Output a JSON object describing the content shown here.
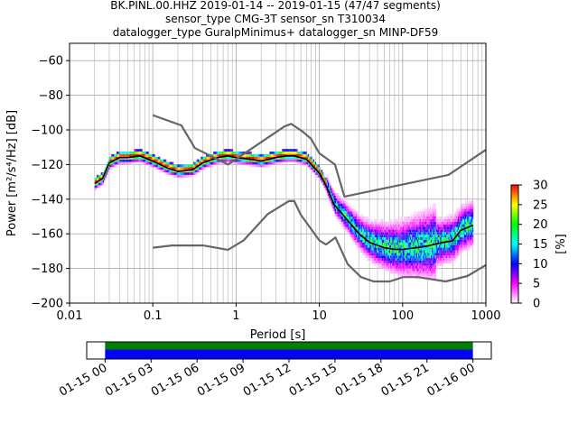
{
  "title_lines": [
    "BK.PINL.00.HHZ   2019-01-14 -- 2019-01-15  (47/47 segments)",
    "sensor_type CMG-3T sensor_sn T310034",
    "datalogger_type GuralpMinimus+ datalogger_sn MINP-DF59"
  ],
  "chart_data": [
    {
      "type": "heatmap",
      "subtype": "probabilistic-power-spectral-density",
      "xlabel": "Period [s]",
      "ylabel": "Power [m²/s⁴/Hz] [dB]",
      "xscale": "log",
      "xlim": [
        0.01,
        1000
      ],
      "ylim": [
        -200,
        -50
      ],
      "x_ticks": [
        0.01,
        0.1,
        1,
        10,
        100,
        1000
      ],
      "x_tick_labels": [
        "0.01",
        "0.1",
        "1",
        "10",
        "100",
        "1000"
      ],
      "y_ticks": [
        -200,
        -180,
        -160,
        -140,
        -120,
        -100,
        -80,
        -60
      ],
      "y_tick_labels": [
        "−200",
        "−180",
        "−160",
        "−140",
        "−120",
        "−100",
        "−80",
        "−60"
      ],
      "grid": true,
      "colorbar": {
        "label": "[%]",
        "range": [
          0,
          30
        ],
        "ticks": [
          0,
          5,
          10,
          15,
          20,
          25,
          30
        ],
        "tick_labels": [
          "0",
          "5",
          "10",
          "15",
          "20",
          "25",
          "30"
        ],
        "colors": [
          "#ffffff",
          "#ff00ff",
          "#0000ff",
          "#00ffff",
          "#00ff00",
          "#ffff00",
          "#ff0000"
        ]
      },
      "series": [
        {
          "role": "mode",
          "color": "#000000",
          "x": [
            0.02,
            0.025,
            0.03,
            0.04,
            0.05,
            0.07,
            0.1,
            0.15,
            0.2,
            0.3,
            0.4,
            0.6,
            0.8,
            1,
            1.5,
            2,
            3,
            4,
            5,
            7,
            10,
            12,
            15,
            20,
            30,
            40,
            60,
            80,
            100,
            150,
            200,
            300,
            400,
            500,
            700
          ],
          "y": [
            -131,
            -128,
            -119,
            -116,
            -116,
            -115,
            -118,
            -122,
            -124,
            -123,
            -119,
            -116,
            -115,
            -116,
            -117,
            -118,
            -116,
            -115,
            -115,
            -117,
            -125,
            -132,
            -143,
            -150,
            -160,
            -165,
            -168,
            -169,
            -169,
            -168,
            -167,
            -165,
            -164,
            -158,
            -155
          ]
        },
        {
          "role": "noise-model-high",
          "color": "#666666",
          "x": [
            0.1,
            0.22,
            0.32,
            0.8,
            3.8,
            4.6,
            6.3,
            7.9,
            10,
            15.4,
            20,
            354.8,
            1000
          ],
          "y": [
            -91.5,
            -97.4,
            -110.5,
            -120,
            -98,
            -96.5,
            -101,
            -105,
            -113.5,
            -120,
            -138.5,
            -126,
            -111.5
          ]
        },
        {
          "role": "noise-model-low",
          "color": "#666666",
          "x": [
            0.1,
            0.17,
            0.4,
            0.8,
            1.24,
            2.4,
            4.3,
            5,
            6,
            10,
            12,
            15.6,
            21.9,
            31.6,
            45,
            70,
            101,
            154,
            328,
            600,
            1000
          ],
          "y": [
            -168,
            -166.7,
            -166.7,
            -169.2,
            -163.7,
            -148.6,
            -141.1,
            -141.1,
            -149,
            -163.8,
            -166.2,
            -162.1,
            -177.5,
            -185,
            -187.5,
            -187.5,
            -185,
            -185,
            -187.5,
            -184.4,
            -178
          ]
        }
      ]
    },
    {
      "type": "bar",
      "subtype": "data-coverage",
      "tick_labels": [
        "01-15 00",
        "01-15 03",
        "01-15 06",
        "01-15 09",
        "01-15 12",
        "01-15 15",
        "01-15 18",
        "01-15 21",
        "01-16 00"
      ],
      "tick_hours": [
        0,
        3,
        6,
        9,
        12,
        15,
        18,
        21,
        24
      ],
      "xlim_hours": [
        -1.2,
        25.2
      ],
      "coverage": [
        {
          "name": "",
          "color": "#008000",
          "start_hour": 0,
          "end_hour": 24,
          "band": "upper"
        },
        {
          "name": "",
          "color": "#0000ff",
          "start_hour": 0,
          "end_hour": 24,
          "band": "lower"
        }
      ]
    }
  ]
}
